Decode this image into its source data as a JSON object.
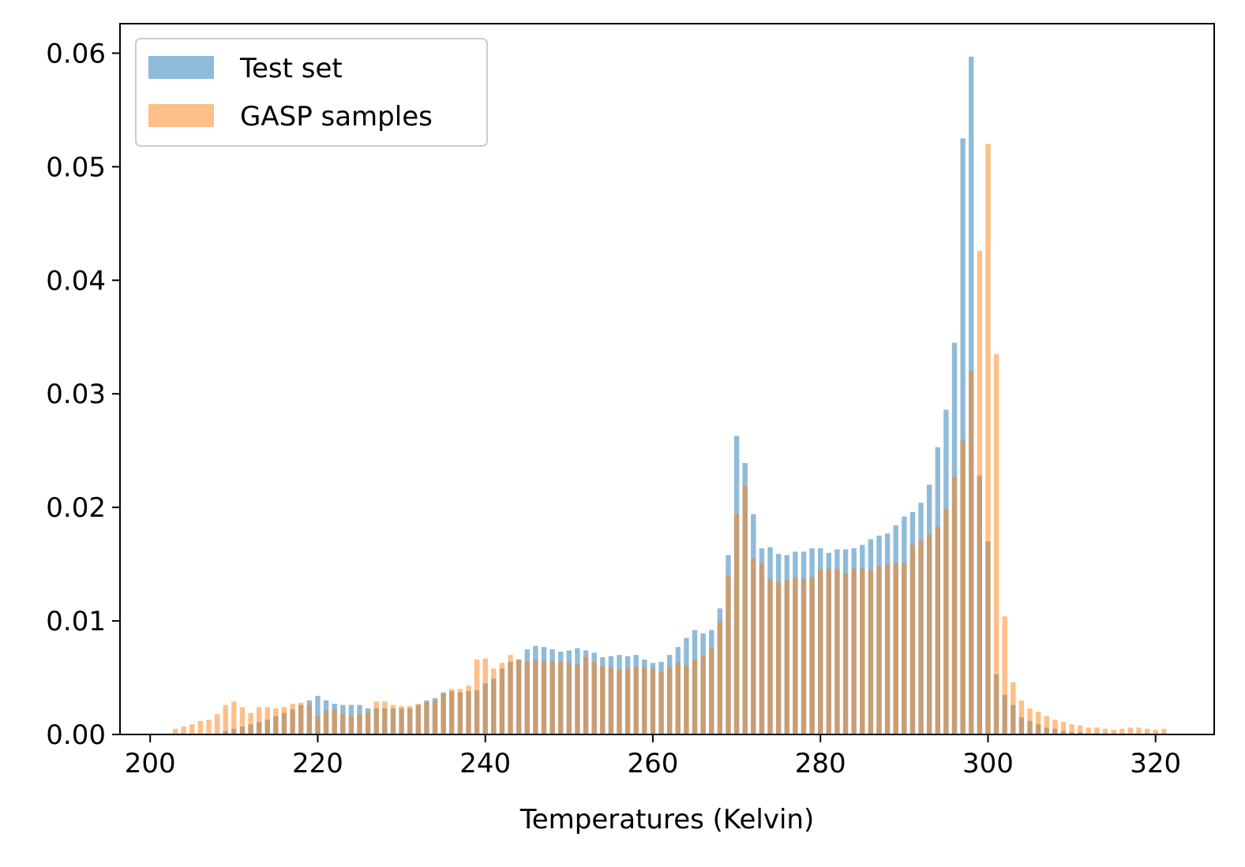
{
  "chart_data": {
    "type": "bar",
    "title": "",
    "xlabel": "Temperatures (Kelvin)",
    "ylabel": "",
    "xlim": [
      196.4,
      327.0
    ],
    "ylim": [
      0.0,
      0.0626
    ],
    "xticks": [
      200,
      220,
      240,
      260,
      280,
      300,
      320
    ],
    "xtick_labels": [
      "200",
      "220",
      "240",
      "260",
      "280",
      "300",
      "320"
    ],
    "yticks": [
      0.0,
      0.01,
      0.02,
      0.03,
      0.04,
      0.05,
      0.06
    ],
    "ytick_labels": [
      "0.00",
      "0.01",
      "0.02",
      "0.03",
      "0.04",
      "0.05",
      "0.06"
    ],
    "grid": false,
    "legend": "top-left",
    "bar_width": 0.6,
    "series": [
      {
        "name": "Test set",
        "color": "#1f77b4",
        "opacity": 0.5,
        "x": [
          209,
          210,
          211,
          212,
          213,
          214,
          215,
          216,
          217,
          218,
          219,
          220,
          221,
          222,
          223,
          224,
          225,
          226,
          227,
          228,
          229,
          230,
          231,
          232,
          233,
          234,
          235,
          236,
          237,
          238,
          239,
          240,
          241,
          242,
          243,
          244,
          245,
          246,
          247,
          248,
          249,
          250,
          251,
          252,
          253,
          254,
          255,
          256,
          257,
          258,
          259,
          260,
          261,
          262,
          263,
          264,
          265,
          266,
          267,
          268,
          269,
          270,
          271,
          272,
          273,
          274,
          275,
          276,
          277,
          278,
          279,
          280,
          281,
          282,
          283,
          284,
          285,
          286,
          287,
          288,
          289,
          290,
          291,
          292,
          293,
          294,
          295,
          296,
          297,
          298,
          299,
          300,
          301,
          302,
          303,
          304,
          305,
          306,
          307,
          308,
          309,
          310,
          311,
          312,
          313
        ],
        "values": [
          0.0003,
          0.0005,
          0.0007,
          0.0009,
          0.0011,
          0.0013,
          0.0016,
          0.0019,
          0.0022,
          0.0026,
          0.003,
          0.0034,
          0.003,
          0.0027,
          0.0026,
          0.0026,
          0.0026,
          0.0023,
          0.0023,
          0.0023,
          0.0023,
          0.0023,
          0.0023,
          0.0026,
          0.003,
          0.0032,
          0.0037,
          0.0038,
          0.0037,
          0.0038,
          0.0039,
          0.0045,
          0.0049,
          0.0058,
          0.0064,
          0.0066,
          0.0075,
          0.0078,
          0.0077,
          0.0075,
          0.0073,
          0.0074,
          0.0076,
          0.0074,
          0.0072,
          0.0068,
          0.0069,
          0.007,
          0.0069,
          0.007,
          0.0066,
          0.0063,
          0.0064,
          0.007,
          0.0077,
          0.0085,
          0.0092,
          0.0089,
          0.0092,
          0.0111,
          0.0158,
          0.0263,
          0.0239,
          0.0194,
          0.0164,
          0.0165,
          0.0159,
          0.0158,
          0.0161,
          0.0161,
          0.0164,
          0.0164,
          0.016,
          0.0163,
          0.0163,
          0.0164,
          0.0167,
          0.0172,
          0.0175,
          0.0177,
          0.0184,
          0.0192,
          0.0196,
          0.0204,
          0.022,
          0.0253,
          0.0286,
          0.0345,
          0.0525,
          0.0597,
          0.0228,
          0.017,
          0.0053,
          0.0035,
          0.0026,
          0.0015,
          0.0012,
          0.0009,
          0.0006,
          0.0005,
          0.0003,
          0.0002,
          0.0002,
          0.0001,
          0.0001
        ],
        "x_start": 209
      },
      {
        "name": "GASP samples",
        "color": "#ff7f0e",
        "opacity": 0.5,
        "x": [
          203,
          204,
          205,
          206,
          207,
          208,
          209,
          210,
          211,
          212,
          213,
          214,
          215,
          216,
          217,
          218,
          219,
          220,
          221,
          222,
          223,
          224,
          225,
          226,
          227,
          228,
          229,
          230,
          231,
          232,
          233,
          234,
          235,
          236,
          237,
          238,
          239,
          240,
          241,
          242,
          243,
          244,
          245,
          246,
          247,
          248,
          249,
          250,
          251,
          252,
          253,
          254,
          255,
          256,
          257,
          258,
          259,
          260,
          261,
          262,
          263,
          264,
          265,
          266,
          267,
          268,
          269,
          270,
          271,
          272,
          273,
          274,
          275,
          276,
          277,
          278,
          279,
          280,
          281,
          282,
          283,
          284,
          285,
          286,
          287,
          288,
          289,
          290,
          291,
          292,
          293,
          294,
          295,
          296,
          297,
          298,
          299,
          300,
          301,
          302,
          303,
          304,
          305,
          306,
          307,
          308,
          309,
          310,
          311,
          312,
          313,
          314,
          315,
          316,
          317,
          318,
          319,
          320,
          321
        ],
        "values": [
          0.0005,
          0.0007,
          0.0009,
          0.0012,
          0.0013,
          0.0018,
          0.0026,
          0.0029,
          0.0024,
          0.0019,
          0.0024,
          0.0024,
          0.0023,
          0.0024,
          0.0027,
          0.0028,
          0.0026,
          0.0016,
          0.0021,
          0.0022,
          0.0018,
          0.0016,
          0.0018,
          0.002,
          0.0029,
          0.0029,
          0.0026,
          0.0025,
          0.0025,
          0.0027,
          0.0028,
          0.003,
          0.0036,
          0.004,
          0.004,
          0.0043,
          0.0066,
          0.0067,
          0.0058,
          0.0063,
          0.007,
          0.0066,
          0.0064,
          0.0066,
          0.0065,
          0.0065,
          0.0064,
          0.0063,
          0.0062,
          0.0068,
          0.0064,
          0.006,
          0.0059,
          0.0057,
          0.0058,
          0.006,
          0.0059,
          0.0058,
          0.0055,
          0.0059,
          0.0063,
          0.0061,
          0.0066,
          0.007,
          0.0077,
          0.01,
          0.014,
          0.0194,
          0.0219,
          0.0155,
          0.015,
          0.0137,
          0.0134,
          0.0136,
          0.0138,
          0.0137,
          0.0139,
          0.0145,
          0.0146,
          0.0145,
          0.0142,
          0.0146,
          0.0146,
          0.0145,
          0.0148,
          0.015,
          0.0151,
          0.0151,
          0.0167,
          0.0171,
          0.0176,
          0.0183,
          0.0199,
          0.0227,
          0.0259,
          0.032,
          0.0426,
          0.052,
          0.0335,
          0.0104,
          0.0046,
          0.003,
          0.0023,
          0.002,
          0.0016,
          0.0013,
          0.0011,
          0.0009,
          0.0008,
          0.0006,
          0.0006,
          0.0005,
          0.0004,
          0.0005,
          0.0006,
          0.0006,
          0.0005,
          0.0004,
          0.0005
        ]
      }
    ]
  }
}
